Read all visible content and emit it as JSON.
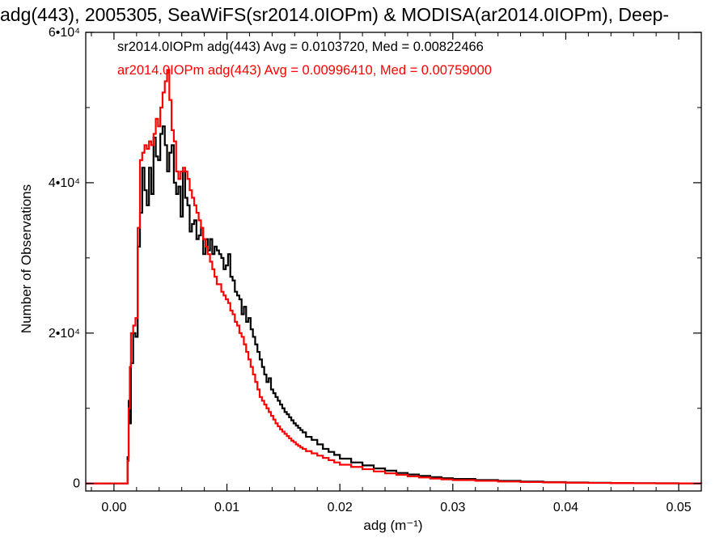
{
  "title": "adg(443), 2005305, SeaWiFS(sr2014.0IOPm) & MODISA(ar2014.0IOPm), Deep-",
  "chart_data": {
    "type": "histogram",
    "xlabel": "adg (m⁻¹)",
    "ylabel": "Number of Observations",
    "xlim": [
      -0.0025,
      0.052
    ],
    "ylim": [
      -1000,
      60000
    ],
    "xticks": [
      0.0,
      0.01,
      0.02,
      0.03,
      0.04,
      0.05
    ],
    "xtick_labels": [
      "0.00",
      "0.01",
      "0.02",
      "0.03",
      "0.04",
      "0.05"
    ],
    "yticks": [
      0,
      20000,
      40000,
      60000
    ],
    "ytick_labels": [
      "0",
      "2•10⁴",
      "4•10⁴",
      "6•10⁴"
    ],
    "legend": [
      {
        "text": "sr2014.0IOPm adg(443) Avg = 0.0103720, Med = 0.00822466",
        "color": "#000000"
      },
      {
        "text": "ar2014.0IOPm adg(443) Avg = 0.00996410, Med = 0.00759000",
        "color": "#ff0000"
      }
    ],
    "series": [
      {
        "color": "#000000",
        "x": [
          -0.0025,
          0.0009,
          0.0012,
          0.0013,
          0.0014,
          0.0015,
          0.0017,
          0.0019,
          0.0021,
          0.0023,
          0.0025,
          0.0027,
          0.0029,
          0.0031,
          0.0033,
          0.0035,
          0.0037,
          0.0039,
          0.0041,
          0.0043,
          0.0045,
          0.0047,
          0.0049,
          0.0051,
          0.0053,
          0.0055,
          0.0057,
          0.0059,
          0.0061,
          0.0063,
          0.0065,
          0.0067,
          0.0069,
          0.0071,
          0.0073,
          0.0075,
          0.0077,
          0.0079,
          0.0081,
          0.0083,
          0.0085,
          0.0087,
          0.0089,
          0.0091,
          0.0093,
          0.0095,
          0.0097,
          0.0099,
          0.0101,
          0.0103,
          0.0105,
          0.0107,
          0.0109,
          0.0111,
          0.0113,
          0.0115,
          0.0117,
          0.0119,
          0.0121,
          0.0123,
          0.0125,
          0.0127,
          0.0129,
          0.0131,
          0.0133,
          0.0135,
          0.0137,
          0.0139,
          0.0141,
          0.0143,
          0.0145,
          0.0147,
          0.0149,
          0.0151,
          0.0153,
          0.0155,
          0.0157,
          0.0159,
          0.0161,
          0.0163,
          0.0165,
          0.0167,
          0.017,
          0.0175,
          0.018,
          0.0185,
          0.019,
          0.0195,
          0.02,
          0.021,
          0.022,
          0.023,
          0.024,
          0.025,
          0.026,
          0.027,
          0.028,
          0.029,
          0.03,
          0.032,
          0.034,
          0.036,
          0.038,
          0.04,
          0.042,
          0.044,
          0.046,
          0.048,
          0.05,
          0.052
        ],
        "y": [
          0,
          0,
          3500,
          11000,
          8000,
          16000,
          20000,
          19500,
          31500,
          36000,
          42000,
          39000,
          37000,
          42000,
          38500,
          46000,
          43500,
          43000,
          46500,
          47500,
          45000,
          41500,
          44000,
          45000,
          40000,
          38500,
          39500,
          35500,
          41500,
          38000,
          37000,
          33500,
          34500,
          35000,
          32500,
          33000,
          34000,
          30500,
          32500,
          31000,
          32500,
          30500,
          31500,
          31000,
          30500,
          30000,
          28500,
          29000,
          30500,
          27500,
          27000,
          25500,
          25000,
          24500,
          22500,
          23500,
          21500,
          22000,
          20500,
          19500,
          18500,
          17500,
          16500,
          15500,
          14500,
          13500,
          14000,
          12500,
          12000,
          11500,
          11000,
          10500,
          10000,
          9500,
          9200,
          8800,
          8400,
          8000,
          7700,
          7400,
          7100,
          6800,
          6200,
          5800,
          5200,
          4600,
          4200,
          3800,
          3300,
          2800,
          2400,
          2000,
          1700,
          1400,
          1200,
          1000,
          850,
          700,
          600,
          450,
          350,
          250,
          180,
          130,
          90,
          60,
          40,
          25,
          15,
          10
        ]
      },
      {
        "color": "#ff0000",
        "x": [
          -0.0025,
          0.0009,
          0.0012,
          0.0013,
          0.0014,
          0.0015,
          0.0017,
          0.0019,
          0.0021,
          0.0023,
          0.0025,
          0.0027,
          0.0029,
          0.0031,
          0.0033,
          0.0035,
          0.0037,
          0.0039,
          0.0041,
          0.0043,
          0.0045,
          0.0047,
          0.0049,
          0.0051,
          0.0053,
          0.0055,
          0.0057,
          0.0059,
          0.0061,
          0.0063,
          0.0065,
          0.0067,
          0.0069,
          0.0071,
          0.0073,
          0.0075,
          0.0077,
          0.0079,
          0.0081,
          0.0083,
          0.0085,
          0.0087,
          0.0089,
          0.0091,
          0.0093,
          0.0095,
          0.0097,
          0.0099,
          0.0101,
          0.0103,
          0.0105,
          0.0107,
          0.0109,
          0.0111,
          0.0113,
          0.0115,
          0.0117,
          0.0119,
          0.0121,
          0.0123,
          0.0125,
          0.0127,
          0.0129,
          0.0131,
          0.0133,
          0.0135,
          0.0137,
          0.0139,
          0.0141,
          0.0143,
          0.0145,
          0.0147,
          0.0149,
          0.0151,
          0.0153,
          0.0155,
          0.0157,
          0.0159,
          0.0161,
          0.0163,
          0.0165,
          0.0167,
          0.017,
          0.0175,
          0.018,
          0.0185,
          0.019,
          0.0195,
          0.02,
          0.021,
          0.022,
          0.023,
          0.024,
          0.025,
          0.026,
          0.027,
          0.028,
          0.029,
          0.03,
          0.032,
          0.034,
          0.036,
          0.038,
          0.04,
          0.042,
          0.044,
          0.046,
          0.048,
          0.05,
          0.052
        ],
        "y": [
          0,
          0,
          3000,
          10000,
          15500,
          20000,
          21000,
          22000,
          34000,
          43000,
          44000,
          45000,
          44500,
          45500,
          45000,
          46500,
          48500,
          47500,
          50000,
          52000,
          53500,
          55000,
          51000,
          47000,
          45500,
          41500,
          40500,
          41500,
          42000,
          41500,
          40500,
          39000,
          38000,
          37000,
          36000,
          35000,
          34000,
          32500,
          31500,
          30500,
          29500,
          28500,
          27500,
          26500,
          26500,
          25500,
          25000,
          24500,
          24000,
          23000,
          22500,
          21500,
          21000,
          20000,
          19500,
          18500,
          17500,
          16500,
          15500,
          14500,
          13500,
          12500,
          11500,
          11000,
          10500,
          10000,
          9500,
          9000,
          8500,
          8000,
          7600,
          7200,
          6900,
          6600,
          6300,
          6000,
          5700,
          5500,
          5200,
          5000,
          4800,
          4600,
          4300,
          4000,
          3700,
          3400,
          3100,
          2800,
          2500,
          2200,
          1900,
          1600,
          1350,
          1150,
          950,
          800,
          650,
          550,
          450,
          350,
          260,
          190,
          140,
          100,
          70,
          50,
          30,
          20,
          12,
          8
        ]
      }
    ]
  }
}
